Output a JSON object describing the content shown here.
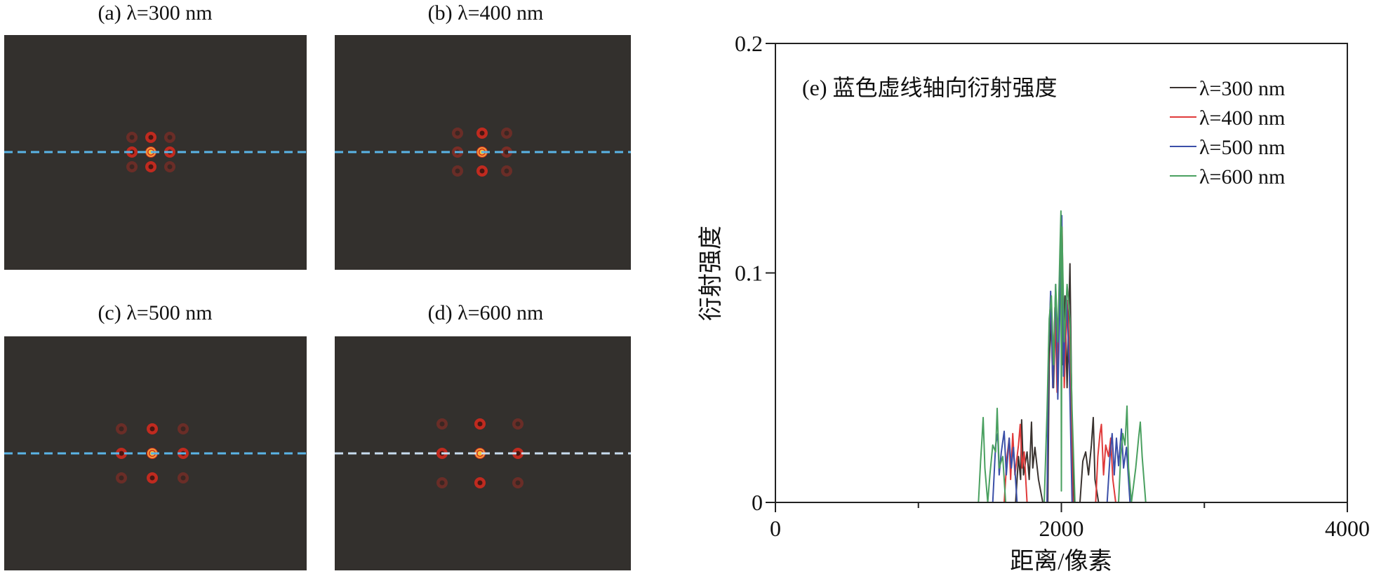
{
  "panels": [
    {
      "title": "(a) λ=300 nm",
      "wavelength_nm": 300,
      "dash_color": "#5ab4e6"
    },
    {
      "title": "(b) λ=400 nm",
      "wavelength_nm": 400,
      "dash_color": "#5ab4e6"
    },
    {
      "title": "(c) λ=500 nm",
      "wavelength_nm": 500,
      "dash_color": "#5ab4e6"
    },
    {
      "title": "(d) λ=600 nm",
      "wavelength_nm": 600,
      "dash_color": "#c8dcef"
    }
  ],
  "panel_background": "#33302d",
  "chart_data": {
    "type": "line",
    "annotation": "(e) 蓝色虚线轴向衍射强度",
    "xlabel": "距离/像素",
    "ylabel": "衍射强度",
    "xlim": [
      0,
      4000
    ],
    "ylim": [
      0,
      0.2
    ],
    "xticks": [
      "0",
      "2000",
      "4000"
    ],
    "xticks_minor": [
      1000,
      3000
    ],
    "yticks": [
      "0",
      "0.1",
      "0.2"
    ],
    "grid": false,
    "legend": "top-right",
    "series": [
      {
        "name": "λ=300 nm",
        "color": "#3a3330",
        "points": [
          [
            0,
            0
          ],
          [
            1680,
            0
          ],
          [
            1700,
            0.02
          ],
          [
            1715,
            0.01
          ],
          [
            1722,
            0.036
          ],
          [
            1735,
            0.012
          ],
          [
            1760,
            0.022
          ],
          [
            1775,
            0.01
          ],
          [
            1791,
            0.035
          ],
          [
            1800,
            0.015
          ],
          [
            1815,
            0.024
          ],
          [
            1840,
            0.01
          ],
          [
            1870,
            0
          ],
          [
            1905,
            0
          ],
          [
            1915,
            0.06
          ],
          [
            1930,
            0.085
          ],
          [
            1945,
            0.05
          ],
          [
            1960,
            0.09
          ],
          [
            1975,
            0.055
          ],
          [
            1990,
            0.1
          ],
          [
            2000,
            0.11
          ],
          [
            2010,
            0.06
          ],
          [
            2025,
            0.09
          ],
          [
            2040,
            0.05
          ],
          [
            2060,
            0.104
          ],
          [
            2075,
            0.03
          ],
          [
            2090,
            0
          ],
          [
            2130,
            0
          ],
          [
            2150,
            0.018
          ],
          [
            2170,
            0.022
          ],
          [
            2190,
            0.012
          ],
          [
            2210,
            0.025
          ],
          [
            2223,
            0.037
          ],
          [
            2235,
            0.01
          ],
          [
            2260,
            0
          ],
          [
            4000,
            0
          ]
        ]
      },
      {
        "name": "λ=400 nm",
        "color": "#e03a3a",
        "points": [
          [
            0,
            0
          ],
          [
            1600,
            0
          ],
          [
            1620,
            0.02
          ],
          [
            1635,
            0.028
          ],
          [
            1645,
            0.01
          ],
          [
            1660,
            0.03
          ],
          [
            1675,
            0.012
          ],
          [
            1700,
            0.025
          ],
          [
            1712,
            0.034
          ],
          [
            1725,
            0.015
          ],
          [
            1740,
            0.022
          ],
          [
            1760,
            0
          ],
          [
            1900,
            0
          ],
          [
            1912,
            0.07
          ],
          [
            1925,
            0.09
          ],
          [
            1940,
            0.05
          ],
          [
            1955,
            0.085
          ],
          [
            1970,
            0.048
          ],
          [
            1990,
            0.095
          ],
          [
            2005,
            0.12
          ],
          [
            2020,
            0.05
          ],
          [
            2040,
            0.088
          ],
          [
            2060,
            0.065
          ],
          [
            2080,
            0
          ],
          [
            2240,
            0
          ],
          [
            2255,
            0.02
          ],
          [
            2270,
            0.03
          ],
          [
            2280,
            0.034
          ],
          [
            2295,
            0.012
          ],
          [
            2310,
            0.025
          ],
          [
            2330,
            0.02
          ],
          [
            2345,
            0.028
          ],
          [
            2360,
            0.01
          ],
          [
            2380,
            0
          ],
          [
            4000,
            0
          ]
        ]
      },
      {
        "name": "λ=500 nm",
        "color": "#3b4fa8",
        "points": [
          [
            0,
            0
          ],
          [
            1520,
            0
          ],
          [
            1540,
            0.025
          ],
          [
            1555,
            0.03
          ],
          [
            1565,
            0.012
          ],
          [
            1580,
            0.022
          ],
          [
            1600,
            0.031
          ],
          [
            1615,
            0.012
          ],
          [
            1635,
            0.028
          ],
          [
            1650,
            0.015
          ],
          [
            1665,
            0.024
          ],
          [
            1690,
            0
          ],
          [
            1900,
            0
          ],
          [
            1910,
            0.065
          ],
          [
            1925,
            0.092
          ],
          [
            1940,
            0.05
          ],
          [
            1960,
            0.095
          ],
          [
            1975,
            0.045
          ],
          [
            1995,
            0.1
          ],
          [
            2003,
            0.125
          ],
          [
            2015,
            0.055
          ],
          [
            2035,
            0.09
          ],
          [
            2055,
            0.06
          ],
          [
            2075,
            0
          ],
          [
            2320,
            0
          ],
          [
            2340,
            0.02
          ],
          [
            2355,
            0.03
          ],
          [
            2370,
            0.012
          ],
          [
            2385,
            0.028
          ],
          [
            2400,
            0.016
          ],
          [
            2420,
            0.032
          ],
          [
            2435,
            0.015
          ],
          [
            2455,
            0.024
          ],
          [
            2480,
            0
          ],
          [
            4000,
            0
          ]
        ]
      },
      {
        "name": "λ=600 nm",
        "color": "#4aa060",
        "points": [
          [
            0,
            0
          ],
          [
            1420,
            0
          ],
          [
            1435,
            0.018
          ],
          [
            1445,
            0.028
          ],
          [
            1453,
            0.037
          ],
          [
            1465,
            0.015
          ],
          [
            1485,
            0
          ],
          [
            1500,
            0.012
          ],
          [
            1520,
            0.025
          ],
          [
            1540,
            0.022
          ],
          [
            1551,
            0.041
          ],
          [
            1565,
            0.015
          ],
          [
            1590,
            0.02
          ],
          [
            1610,
            0
          ],
          [
            1880,
            0
          ],
          [
            1900,
            0.04
          ],
          [
            1915,
            0.08
          ],
          [
            1930,
            0.09
          ],
          [
            1945,
            0.06
          ],
          [
            1960,
            0.095
          ],
          [
            1975,
            0.07
          ],
          [
            1990,
            0.11
          ],
          [
            1997,
            0.127
          ],
          [
            2000,
            0.005
          ],
          [
            2004,
            0.12
          ],
          [
            2020,
            0.07
          ],
          [
            2040,
            0.095
          ],
          [
            2060,
            0.08
          ],
          [
            2075,
            0.04
          ],
          [
            2095,
            0
          ],
          [
            2400,
            0
          ],
          [
            2415,
            0.02
          ],
          [
            2430,
            0.03
          ],
          [
            2445,
            0.025
          ],
          [
            2459,
            0.042
          ],
          [
            2470,
            0.015
          ],
          [
            2490,
            0
          ],
          [
            2520,
            0.015
          ],
          [
            2540,
            0.028
          ],
          [
            2552,
            0.035
          ],
          [
            2565,
            0.02
          ],
          [
            2590,
            0
          ],
          [
            4000,
            0
          ]
        ]
      }
    ]
  }
}
